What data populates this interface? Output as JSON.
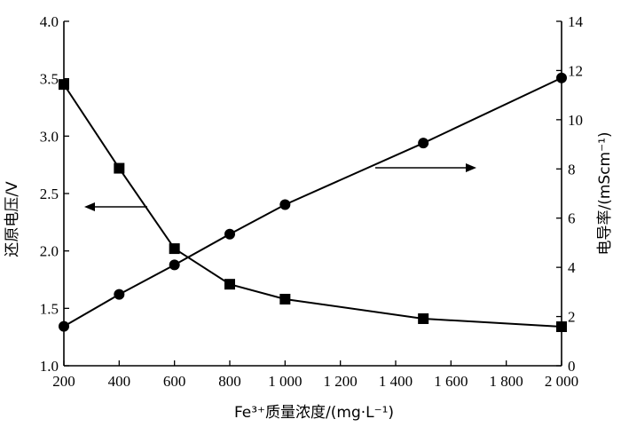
{
  "chart_data": {
    "type": "line",
    "xlabel": "Fe³⁺质量浓度/(mg·L⁻¹)",
    "ylabel_left": "还原电压/V",
    "ylabel_right": "电导率/(mScm⁻¹)",
    "xlim": [
      200,
      2000
    ],
    "ylim_left": [
      1.0,
      4.0
    ],
    "ylim_right": [
      0,
      14
    ],
    "x_ticks": [
      200,
      400,
      600,
      800,
      1000,
      1200,
      1400,
      1600,
      1800,
      2000
    ],
    "x_tick_labels": [
      "200",
      "400",
      "600",
      "800",
      "1 000",
      "1 200",
      "1 400",
      "1 600",
      "1 800",
      "2 000"
    ],
    "y_left_ticks": [
      1.0,
      1.5,
      2.0,
      2.5,
      3.0,
      3.5,
      4.0
    ],
    "y_left_tick_labels": [
      "1.0",
      "1.5",
      "2.0",
      "2.5",
      "3.0",
      "3.5",
      "4.0"
    ],
    "y_right_ticks": [
      0,
      2,
      4,
      6,
      8,
      10,
      12,
      14
    ],
    "y_right_tick_labels": [
      "0",
      "2",
      "4",
      "6",
      "8",
      "10",
      "12",
      "14"
    ],
    "grid": false,
    "series": [
      {
        "axis": "left",
        "marker": "square",
        "x": [
          200,
          400,
          600,
          800,
          1000,
          1500,
          2000
        ],
        "values": [
          3.45,
          2.72,
          2.02,
          1.71,
          1.58,
          1.41,
          1.34
        ]
      },
      {
        "axis": "right",
        "marker": "circle",
        "x": [
          200,
          400,
          600,
          800,
          1000,
          1500,
          2000
        ],
        "values": [
          1.6,
          2.9,
          4.1,
          5.35,
          6.55,
          9.05,
          11.7
        ]
      }
    ],
    "annotations": [
      {
        "type": "arrow",
        "points_to": "left-axis",
        "series": "square"
      },
      {
        "type": "arrow",
        "points_to": "right-axis",
        "series": "circle"
      }
    ]
  }
}
